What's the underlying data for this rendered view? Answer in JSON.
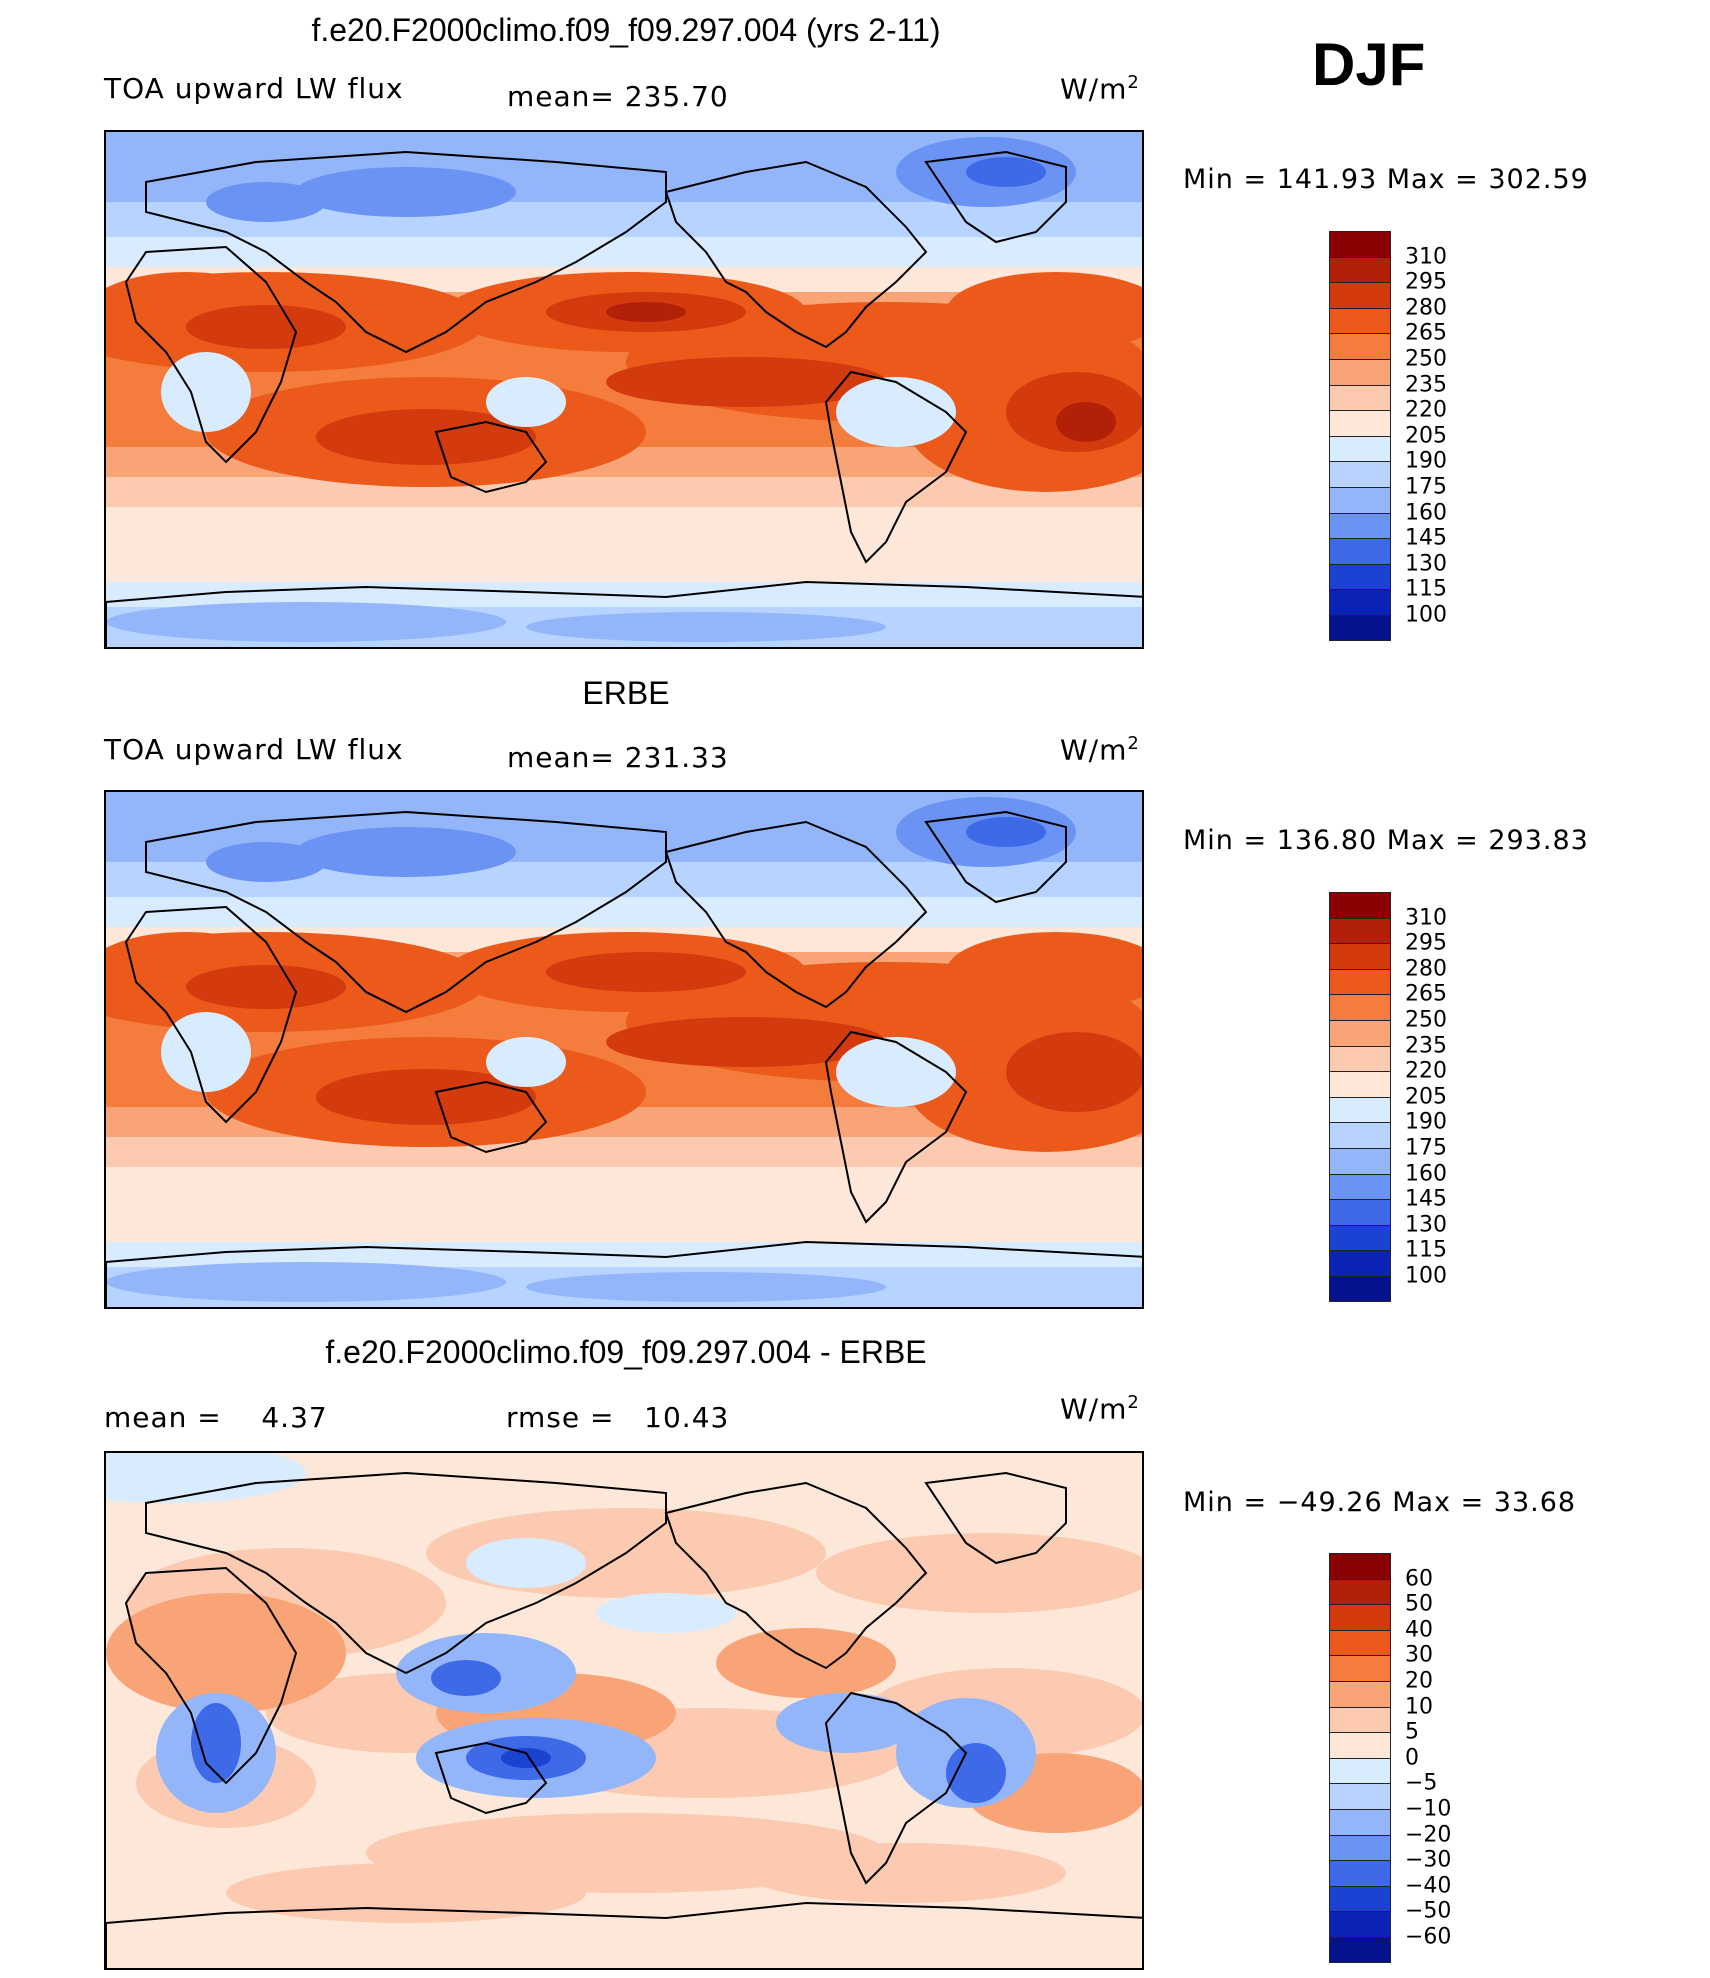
{
  "page": {
    "season": "DJF",
    "units_base": "W/m",
    "units_exp": "2"
  },
  "panels": [
    {
      "id": "model",
      "title": "f.e20.F2000climo.f09_f09.297.004 (yrs 2-11)",
      "left_label": "TOA upward LW flux",
      "center_label": "mean= 235.70",
      "minmax": "Min = 141.93 Max = 302.59",
      "colorbar": {
        "labels": [
          "310",
          "295",
          "280",
          "265",
          "250",
          "235",
          "220",
          "205",
          "190",
          "175",
          "160",
          "145",
          "130",
          "115",
          "100"
        ],
        "colors": [
          "#8b0000",
          "#b32008",
          "#d33a0d",
          "#ec5a1b",
          "#f47c3c",
          "#f8a477",
          "#fbcab0",
          "#fde7d8",
          "#d9ebff",
          "#b7d3ff",
          "#93b6fb",
          "#6a93f3",
          "#3e6ae8",
          "#1c42d2",
          "#0a23b5",
          "#04138c"
        ]
      }
    },
    {
      "id": "obs",
      "title": "ERBE",
      "left_label": "TOA upward LW flux",
      "center_label": "mean= 231.33",
      "minmax": "Min = 136.80 Max = 293.83",
      "colorbar": {
        "labels": [
          "310",
          "295",
          "280",
          "265",
          "250",
          "235",
          "220",
          "205",
          "190",
          "175",
          "160",
          "145",
          "130",
          "115",
          "100"
        ],
        "colors": [
          "#8b0000",
          "#b32008",
          "#d33a0d",
          "#ec5a1b",
          "#f47c3c",
          "#f8a477",
          "#fbcab0",
          "#fde7d8",
          "#d9ebff",
          "#b7d3ff",
          "#93b6fb",
          "#6a93f3",
          "#3e6ae8",
          "#1c42d2",
          "#0a23b5",
          "#04138c"
        ]
      }
    },
    {
      "id": "diff",
      "title": "f.e20.F2000climo.f09_f09.297.004 - ERBE",
      "left_label": "mean =    4.37",
      "center_label": "rmse =   10.43",
      "minmax": "Min = −49.26 Max =   33.68",
      "colorbar": {
        "labels": [
          "60",
          "50",
          "40",
          "30",
          "20",
          "10",
          "5",
          "0",
          "−5",
          "−10",
          "−20",
          "−30",
          "−40",
          "−50",
          "−60"
        ],
        "colors": [
          "#8b0000",
          "#b32008",
          "#d33a0d",
          "#ec5a1b",
          "#f47c3c",
          "#f8a477",
          "#fbcab0",
          "#fde7d8",
          "#d9ebff",
          "#b7d3ff",
          "#93b6fb",
          "#6a93f3",
          "#3e6ae8",
          "#1c42d2",
          "#0a23b5",
          "#04138c"
        ]
      }
    }
  ]
}
